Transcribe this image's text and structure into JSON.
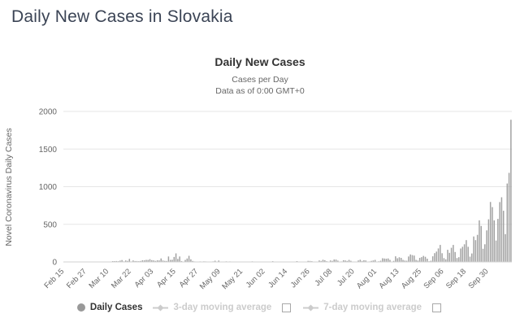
{
  "page": {
    "heading": "Daily New Cases in Slovakia"
  },
  "chart": {
    "legend": [
      {
        "label": "Daily Cases",
        "marker": "circle-icon",
        "active": true,
        "has_checkbox": false
      },
      {
        "label": "3-day moving average",
        "marker": "line-diamond-icon",
        "active": false,
        "has_checkbox": true,
        "checkbox_checked": false
      },
      {
        "label": "7-day moving average",
        "marker": "line-diamond-icon",
        "active": false,
        "has_checkbox": true,
        "checkbox_checked": false
      }
    ],
    "colors": {
      "heading_text": "#3b4455",
      "title_text": "#333333",
      "subtitle_text": "#666666",
      "bar_fill": "#a2a2a2",
      "gridline": "#e6e6e6",
      "axis_line": "#d0d0d0",
      "tick_label": "#666666",
      "legend_active": "#333333",
      "legend_inactive": "#cccccc",
      "legend_marker": "#999999"
    }
  },
  "chart_data": {
    "type": "bar",
    "title": "Daily New Cases",
    "subtitle1": "Cases per Day",
    "subtitle2": "Data as of 0:00 GMT+0",
    "ylabel": "Novel Coronavirus Daily Cases",
    "ylim": [
      0,
      2000
    ],
    "yticks": [
      0,
      500,
      1000,
      1500,
      2000
    ],
    "grid": true,
    "legend_position": "bottom",
    "x_start": "Feb 15",
    "x_tick_interval_days": 12,
    "x_tick_labels": [
      "Feb 15",
      "Feb 27",
      "Mar 10",
      "Mar 22",
      "Apr 03",
      "Apr 15",
      "Apr 27",
      "May 09",
      "May 21",
      "Jun 02",
      "Jun 14",
      "Jun 26",
      "Jul 08",
      "Jul 20",
      "Aug 01",
      "Aug 13",
      "Aug 25",
      "Sep 06",
      "Sep 18",
      "Sep 30"
    ],
    "series_name": "Daily Cases",
    "values": [
      0,
      0,
      0,
      0,
      0,
      0,
      0,
      0,
      0,
      0,
      0,
      0,
      0,
      0,
      0,
      0,
      0,
      0,
      0,
      0,
      1,
      2,
      2,
      2,
      0,
      3,
      11,
      11,
      12,
      10,
      17,
      25,
      8,
      19,
      14,
      41,
      7,
      19,
      12,
      12,
      10,
      13,
      22,
      22,
      27,
      26,
      37,
      24,
      21,
      14,
      22,
      19,
      47,
      19,
      14,
      13,
      72,
      27,
      28,
      66,
      114,
      40,
      72,
      12,
      1,
      26,
      45,
      81,
      35,
      13,
      6,
      2,
      3,
      7,
      5,
      8,
      7,
      0,
      1,
      2,
      8,
      16,
      4,
      18,
      0,
      2,
      5,
      8,
      0,
      6,
      1,
      0,
      3,
      1,
      0,
      1,
      1,
      0,
      1,
      3,
      0,
      8,
      1,
      0,
      0,
      2,
      2,
      2,
      1,
      2,
      0,
      0,
      10,
      0,
      1,
      2,
      1,
      2,
      0,
      2,
      3,
      1,
      4,
      0,
      0,
      11,
      1,
      0,
      0,
      1,
      0,
      14,
      13,
      10,
      2,
      0,
      3,
      20,
      13,
      29,
      23,
      10,
      1,
      19,
      14,
      32,
      31,
      17,
      3,
      7,
      23,
      20,
      13,
      27,
      15,
      5,
      1,
      2,
      20,
      29,
      13,
      23,
      19,
      5,
      6,
      14,
      20,
      27,
      5,
      9,
      16,
      49,
      45,
      43,
      47,
      27,
      4,
      14,
      75,
      49,
      62,
      54,
      27,
      18,
      16,
      72,
      100,
      91,
      84,
      27,
      18,
      54,
      64,
      80,
      68,
      43,
      9,
      16,
      75,
      117,
      137,
      179,
      226,
      116,
      51,
      35,
      161,
      121,
      188,
      226,
      132,
      52,
      63,
      178,
      201,
      235,
      290,
      201,
      70,
      112,
      338,
      290,
      360,
      552,
      478,
      175,
      235,
      419,
      567,
      797,
      729,
      552,
      284,
      572,
      796,
      860,
      680,
      370,
      1042,
      1184,
      1890
    ]
  }
}
